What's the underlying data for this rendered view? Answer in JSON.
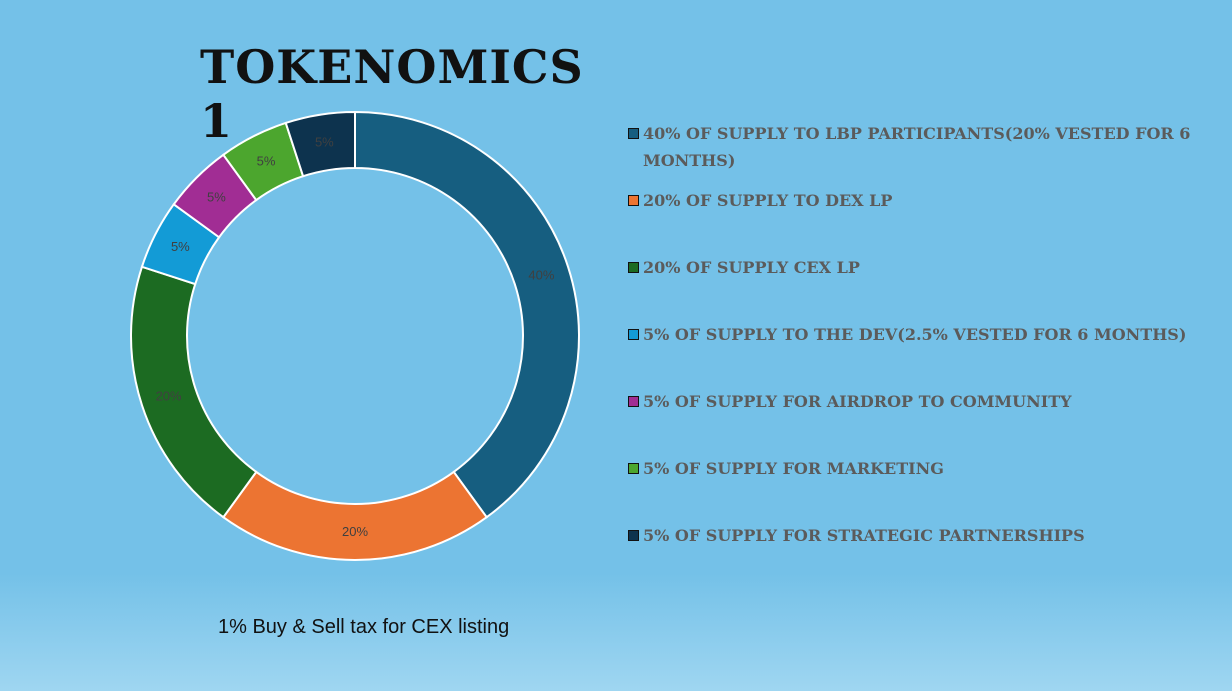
{
  "chart_data": {
    "type": "pie",
    "title": "TOKENOMICS 1",
    "categories": [
      "40% of supply to LBP participants(20% vested for 6 months)",
      "20% of supply to DEX LP",
      "20% of supply CEX LP",
      "5% of supply to the dev(2.5% vested for 6 months)",
      "5% of supply for airdrop to community",
      "5% of supply for marketing",
      "5% of supply for strategic partnerships"
    ],
    "values": [
      40,
      20,
      20,
      5,
      5,
      5,
      5
    ],
    "data_labels": [
      "40%",
      "20%",
      "20%",
      "5%",
      "5%",
      "5%",
      "5%"
    ],
    "colors": [
      "#165e80",
      "#ec7432",
      "#1c6b22",
      "#139bd6",
      "#a12d94",
      "#4ca62e",
      "#0d334e"
    ],
    "legend_position": "right",
    "donut": true
  },
  "footnote": "1% Buy & Sell tax for CEX listing"
}
